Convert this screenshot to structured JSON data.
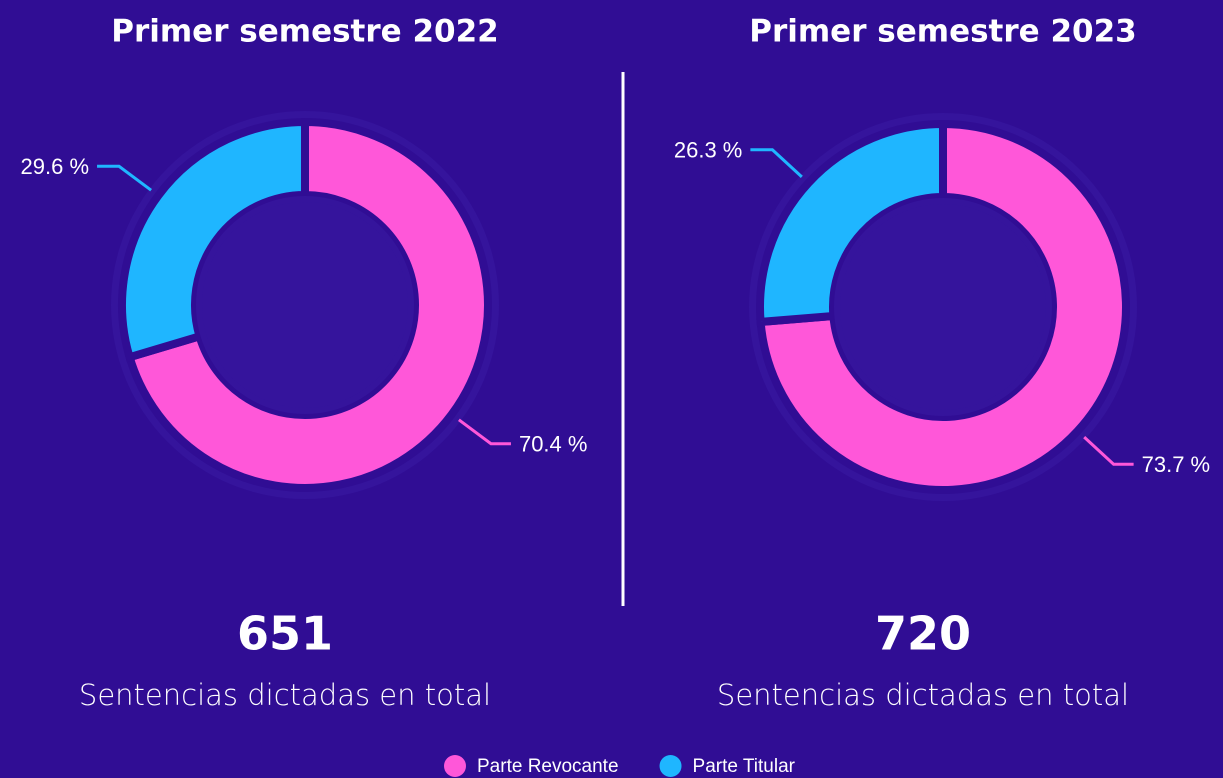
{
  "chart_data": [
    {
      "type": "pie",
      "donut": true,
      "title": "Primer semestre 2022",
      "categories": [
        "Parte Revocante",
        "Parte Titular"
      ],
      "values": [
        70.4,
        29.6
      ],
      "value_labels": [
        "70.4 %",
        "29.6 %"
      ],
      "colors": [
        "#ff57d9",
        "#1fb6ff"
      ],
      "total": 651,
      "total_caption": "Sentencias dictadas en total"
    },
    {
      "type": "pie",
      "donut": true,
      "title": "Primer semestre 2023",
      "categories": [
        "Parte Revocante",
        "Parte Titular"
      ],
      "values": [
        73.7,
        26.3
      ],
      "value_labels": [
        "73.7 %",
        "26.3 %"
      ],
      "colors": [
        "#ff57d9",
        "#1fb6ff"
      ],
      "total": 720,
      "total_caption": "Sentencias dictadas en total"
    }
  ]
}
